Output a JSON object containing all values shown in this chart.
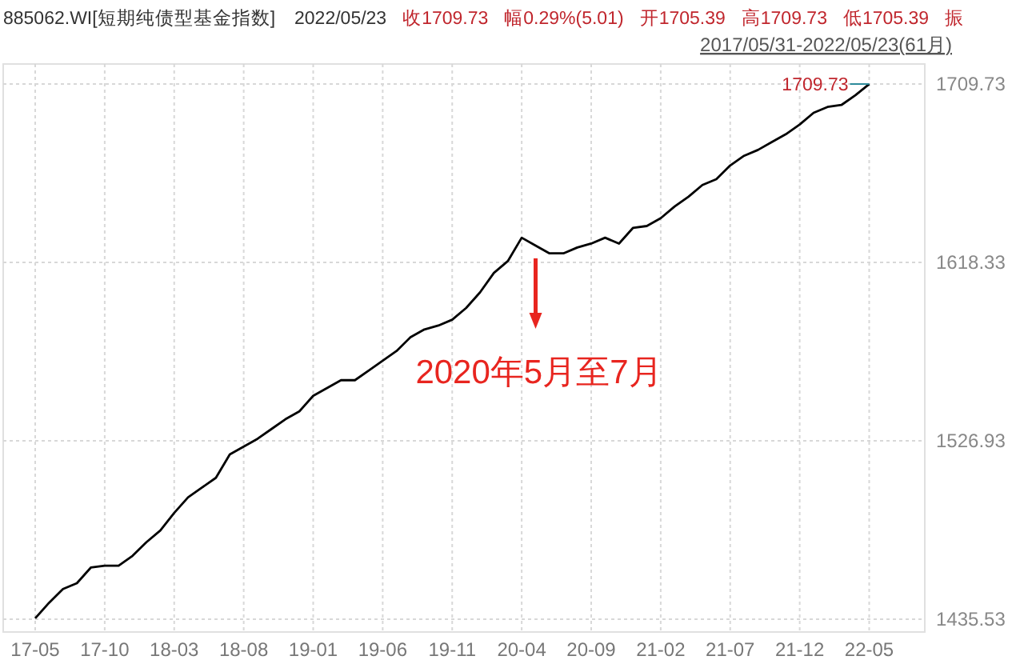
{
  "chart_data": {
    "type": "line",
    "title": "885062.WI[短期纯债型基金指数]",
    "subtitle": "2017/05/31-2022/05/23(61月)",
    "annotations": [
      "2022/05/23",
      "收1709.73",
      "幅0.29%(5.01)",
      "开1705.39",
      "高1709.73",
      "低1705.39",
      "振",
      "1709.73",
      {
        "text": "2020年5月至7月",
        "x": "2020-05",
        "y": 1627
      }
    ],
    "x": [
      "2017-05",
      "2017-06",
      "2017-07",
      "2017-08",
      "2017-09",
      "2017-10",
      "2017-11",
      "2017-12",
      "2018-01",
      "2018-02",
      "2018-03",
      "2018-04",
      "2018-05",
      "2018-06",
      "2018-07",
      "2018-08",
      "2018-09",
      "2018-10",
      "2018-11",
      "2018-12",
      "2019-01",
      "2019-02",
      "2019-03",
      "2019-04",
      "2019-05",
      "2019-06",
      "2019-07",
      "2019-08",
      "2019-09",
      "2019-10",
      "2019-11",
      "2019-12",
      "2020-01",
      "2020-02",
      "2020-03",
      "2020-04",
      "2020-05",
      "2020-06",
      "2020-07",
      "2020-08",
      "2020-09",
      "2020-10",
      "2020-11",
      "2020-12",
      "2021-01",
      "2021-02",
      "2021-03",
      "2021-04",
      "2021-05",
      "2021-06",
      "2021-07",
      "2021-08",
      "2021-09",
      "2021-10",
      "2021-11",
      "2021-12",
      "2022-01",
      "2022-02",
      "2022-03",
      "2022-04",
      "2022-05"
    ],
    "series": [
      {
        "color": "#000000",
        "values": [
          1436,
          1444,
          1451,
          1454,
          1462,
          1463,
          1463,
          1468,
          1475,
          1481,
          1490,
          1498,
          1503,
          1508,
          1520,
          1524,
          1528,
          1533,
          1538,
          1542,
          1550,
          1554,
          1558,
          1558,
          1563,
          1568,
          1573,
          1580,
          1584,
          1586,
          1589,
          1595,
          1603,
          1613,
          1619,
          1631,
          1627,
          1623,
          1623,
          1626,
          1628,
          1631,
          1628,
          1636,
          1637,
          1641,
          1647,
          1652,
          1658,
          1661,
          1668,
          1673,
          1676,
          1680,
          1684,
          1689,
          1695,
          1698,
          1699,
          1704,
          1709.73
        ]
      }
    ],
    "xlim": [
      "2017-05",
      "2022-09"
    ],
    "xticks": [
      {
        "value": "2017-05",
        "label": "17-05"
      },
      {
        "value": "2017-10",
        "label": "17-10"
      },
      {
        "value": "2018-03",
        "label": "18-03"
      },
      {
        "value": "2018-08",
        "label": "18-08"
      },
      {
        "value": "2019-01",
        "label": "19-01"
      },
      {
        "value": "2019-06",
        "label": "19-06"
      },
      {
        "value": "2019-11",
        "label": "19-11"
      },
      {
        "value": "2020-04",
        "label": "20-04"
      },
      {
        "value": "2020-09",
        "label": "20-09"
      },
      {
        "value": "2021-02",
        "label": "21-02"
      },
      {
        "value": "2021-07",
        "label": "21-07"
      },
      {
        "value": "2021-12",
        "label": "21-12"
      },
      {
        "value": "2022-05",
        "label": "22-05"
      }
    ],
    "ylim": [
      1429,
      1720
    ],
    "yticks": [
      1435.53,
      1526.93,
      1618.33,
      1709.73
    ],
    "grid": true,
    "marker": "none",
    "line_style": "solid"
  }
}
